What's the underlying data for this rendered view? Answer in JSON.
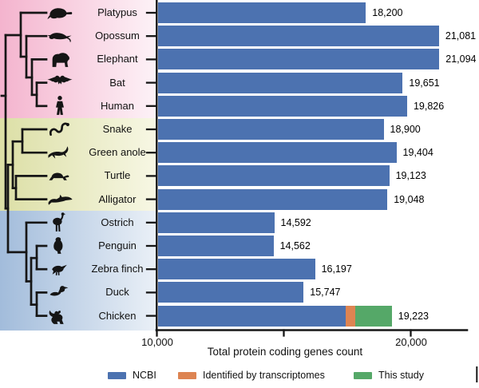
{
  "figure": {
    "axis_title": "Total protein coding genes count",
    "x_ticks": [
      {
        "value": 10000,
        "label": "10,000"
      },
      {
        "value": 15000,
        "label": ""
      },
      {
        "value": 20000,
        "label": "20,000"
      }
    ],
    "legend": [
      {
        "label": "NCBI",
        "color": "#4C72B0"
      },
      {
        "label": "Identified by transcriptomes",
        "color": "#DD8452"
      },
      {
        "label": "This study",
        "color": "#55A868"
      }
    ],
    "groups": [
      {
        "id": "mammal",
        "color_left": "#f4b4ce",
        "color_right": "#fdf2f7"
      },
      {
        "id": "reptile",
        "color_left": "#dcdfa6",
        "color_right": "#f7f7e4"
      },
      {
        "id": "bird",
        "color_left": "#a2bcdb",
        "color_right": "#eaf0f7"
      }
    ],
    "tree_color": "#161616",
    "species": [
      {
        "name": "Platypus",
        "icon": "platypus-icon",
        "group": "mammal",
        "value_label": "18,200",
        "segments": [
          18200,
          0,
          0
        ]
      },
      {
        "name": "Opossum",
        "icon": "opossum-icon",
        "group": "mammal",
        "value_label": "21,081",
        "segments": [
          21081,
          0,
          0
        ]
      },
      {
        "name": "Elephant",
        "icon": "elephant-icon",
        "group": "mammal",
        "value_label": "21,094",
        "segments": [
          21094,
          0,
          0
        ]
      },
      {
        "name": "Bat",
        "icon": "bat-icon",
        "group": "mammal",
        "value_label": "19,651",
        "segments": [
          19651,
          0,
          0
        ]
      },
      {
        "name": "Human",
        "icon": "human-icon",
        "group": "mammal",
        "value_label": "19,826",
        "segments": [
          19826,
          0,
          0
        ]
      },
      {
        "name": "Snake",
        "icon": "snake-icon",
        "group": "reptile",
        "value_label": "18,900",
        "segments": [
          18900,
          0,
          0
        ]
      },
      {
        "name": "Green anole",
        "icon": "green-anole-icon",
        "group": "reptile",
        "value_label": "19,404",
        "segments": [
          19404,
          0,
          0
        ]
      },
      {
        "name": "Turtle",
        "icon": "turtle-icon",
        "group": "reptile",
        "value_label": "19,123",
        "segments": [
          19123,
          0,
          0
        ]
      },
      {
        "name": "Alligator",
        "icon": "alligator-icon",
        "group": "reptile",
        "value_label": "19,048",
        "segments": [
          19048,
          0,
          0
        ]
      },
      {
        "name": "Ostrich",
        "icon": "ostrich-icon",
        "group": "bird",
        "value_label": "14,592",
        "segments": [
          14592,
          0,
          0
        ]
      },
      {
        "name": "Penguin",
        "icon": "penguin-icon",
        "group": "bird",
        "value_label": "14,562",
        "segments": [
          14562,
          0,
          0
        ]
      },
      {
        "name": "Zebra finch",
        "icon": "zebra-finch-icon",
        "group": "bird",
        "value_label": "16,197",
        "segments": [
          16197,
          0,
          0
        ]
      },
      {
        "name": "Duck",
        "icon": "duck-icon",
        "group": "bird",
        "value_label": "15,747",
        "segments": [
          15747,
          0,
          0
        ]
      },
      {
        "name": "Chicken",
        "icon": "chicken-icon",
        "group": "bird",
        "value_label": "19,223",
        "segments": [
          17420,
          375,
          1428
        ]
      }
    ]
  },
  "chart_data": {
    "type": "bar",
    "orientation": "horizontal",
    "title": "",
    "xlabel": "Total protein coding genes count",
    "ylabel": "",
    "xlim": [
      10000,
      22200
    ],
    "x_ticks": [
      10000,
      15000,
      20000
    ],
    "grid": false,
    "legend_position": "bottom",
    "categories": [
      "Platypus",
      "Opossum",
      "Elephant",
      "Bat",
      "Human",
      "Snake",
      "Green anole",
      "Turtle",
      "Alligator",
      "Ostrich",
      "Penguin",
      "Zebra finch",
      "Duck",
      "Chicken"
    ],
    "series": [
      {
        "name": "NCBI",
        "color": "#4C72B0",
        "values": [
          18200,
          21081,
          21094,
          19651,
          19826,
          18900,
          19404,
          19123,
          19048,
          14592,
          14562,
          16197,
          15747,
          17420
        ]
      },
      {
        "name": "Identified by transcriptomes",
        "color": "#DD8452",
        "values": [
          0,
          0,
          0,
          0,
          0,
          0,
          0,
          0,
          0,
          0,
          0,
          0,
          0,
          375
        ]
      },
      {
        "name": "This study",
        "color": "#55A868",
        "values": [
          0,
          0,
          0,
          0,
          0,
          0,
          0,
          0,
          0,
          0,
          0,
          0,
          0,
          1428
        ]
      }
    ],
    "totals": [
      18200,
      21081,
      21094,
      19651,
      19826,
      18900,
      19404,
      19123,
      19048,
      14592,
      14562,
      16197,
      15747,
      19223
    ],
    "bar_labels": [
      "18,200",
      "21,081",
      "21,094",
      "19,651",
      "19,826",
      "18,900",
      "19,404",
      "19,123",
      "19,048",
      "14,592",
      "14,562",
      "16,197",
      "15,747",
      "19,223"
    ],
    "category_groups": [
      "mammal",
      "mammal",
      "mammal",
      "mammal",
      "mammal",
      "reptile",
      "reptile",
      "reptile",
      "reptile",
      "bird",
      "bird",
      "bird",
      "bird",
      "bird"
    ]
  }
}
